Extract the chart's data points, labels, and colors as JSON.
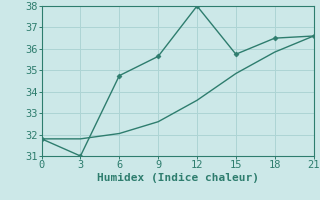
{
  "xlabel": "Humidex (Indice chaleur)",
  "background_color": "#cce8e8",
  "line_color": "#2e7d6e",
  "grid_color": "#add4d4",
  "xlim": [
    0,
    21
  ],
  "ylim": [
    31,
    38
  ],
  "xticks": [
    0,
    3,
    6,
    9,
    12,
    15,
    18,
    21
  ],
  "yticks": [
    31,
    32,
    33,
    34,
    35,
    36,
    37,
    38
  ],
  "series1_x": [
    0,
    3,
    6,
    9,
    12,
    15,
    18,
    21
  ],
  "series1_y": [
    31.8,
    31.0,
    34.75,
    35.65,
    38.0,
    35.75,
    36.5,
    36.6
  ],
  "series2_x": [
    0,
    3,
    6,
    9,
    12,
    15,
    18,
    21
  ],
  "series2_y": [
    31.8,
    31.8,
    32.05,
    32.6,
    33.6,
    34.85,
    35.85,
    36.6
  ],
  "marker": "D",
  "marker_size": 2.5,
  "linewidth": 1.0,
  "fontsize_label": 8,
  "fontsize_tick": 7.5
}
